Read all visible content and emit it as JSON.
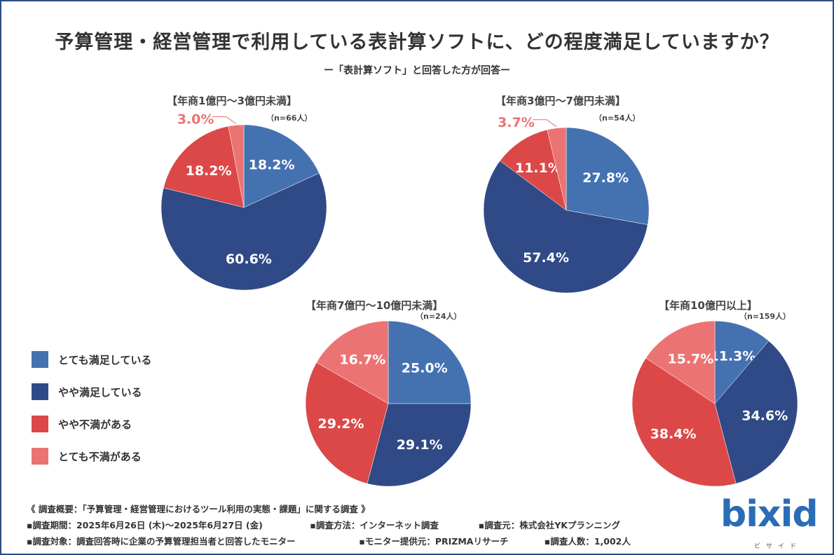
{
  "title": "予算管理・経営管理で利用している表計算ソフトに、どの程度満足していますか？",
  "subtitle": "ー「表計算ソフト」と回答した方が回答ー",
  "colors": {
    "very_satisfied": "#4472b1",
    "somewhat_satisfied": "#2f4a86",
    "somewhat_dissatisfied": "#dc4848",
    "very_dissatisfied": "#ec7373"
  },
  "legend": [
    {
      "label": "とても満足している",
      "color": "#4472b1"
    },
    {
      "label": "やや満足している",
      "color": "#2f4a86"
    },
    {
      "label": "やや不満がある",
      "color": "#dc4848"
    },
    {
      "label": "とても不満がある",
      "color": "#ec7373"
    }
  ],
  "chart_data": [
    {
      "type": "pie",
      "title": "【年商1億円〜3億円未満】",
      "n": "（n=66人）",
      "categories": [
        "とても満足している",
        "やや満足している",
        "やや不満がある",
        "とても不満がある"
      ],
      "values": [
        18.2,
        60.6,
        18.2,
        3.0
      ],
      "labels": [
        "18.2%",
        "60.6%",
        "18.2%",
        "3.0%"
      ]
    },
    {
      "type": "pie",
      "title": "【年商3億円〜7億円未満】",
      "n": "（n=54人）",
      "categories": [
        "とても満足している",
        "やや満足している",
        "やや不満がある",
        "とても不満がある"
      ],
      "values": [
        27.8,
        57.4,
        11.1,
        3.7
      ],
      "labels": [
        "27.8%",
        "57.4%",
        "11.1%",
        "3.7%"
      ]
    },
    {
      "type": "pie",
      "title": "【年商7億円〜10億円未満】",
      "n": "（n=24人）",
      "categories": [
        "とても満足している",
        "やや満足している",
        "やや不満がある",
        "とても不満がある"
      ],
      "values": [
        25.0,
        29.1,
        29.2,
        16.7
      ],
      "labels": [
        "25.0%",
        "29.1%",
        "29.2%",
        "16.7%"
      ]
    },
    {
      "type": "pie",
      "title": "【年商10億円以上】",
      "n": "（n=159人）",
      "categories": [
        "とても満足している",
        "やや満足している",
        "やや不満がある",
        "とても不満がある"
      ],
      "values": [
        11.3,
        34.6,
        38.4,
        15.7
      ],
      "labels": [
        "11.3%",
        "34.6%",
        "38.4%",
        "15.7%"
      ]
    }
  ],
  "footer": {
    "line1": "《 調査概要：「予算管理・経営管理におけるツール利用の実態・課題」に関する調査 》",
    "period": "▪調査期間：2025年6月26日 (木)〜2025年6月27日 (金)",
    "method": "▪調査方法：インターネット調査",
    "source": "▪調査元：株式会社YKプランニング",
    "target": "▪調査対象：調査回答時に企業の予算管理担当者と回答したモニター",
    "provider": "▪モニター提供元：PRIZMAリサーチ",
    "count": "▪調査人数：1,002人"
  },
  "logo": {
    "word": "bixid",
    "kana": "ビサイド"
  }
}
